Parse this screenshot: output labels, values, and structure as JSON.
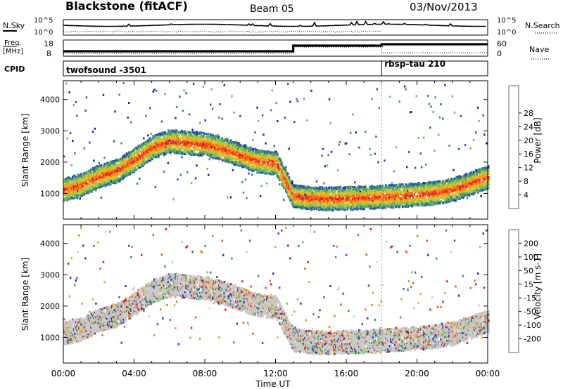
{
  "header": {
    "station": "Blackstone (fitACF)",
    "beam": "Beam 05",
    "date": "03/Nov/2013"
  },
  "noise_panel": {
    "left_label": "N.Sky",
    "right_label": "N.Search",
    "left_ticks": [
      "10^5",
      "10^0"
    ],
    "right_ticks": [
      "10^5",
      "10^0"
    ]
  },
  "freq_panel": {
    "left_label_lines": [
      "Freq.",
      "[MHz]"
    ],
    "right_label": "Nave",
    "left_ticks": [
      "18",
      "8"
    ],
    "right_ticks": [
      "60",
      "0"
    ]
  },
  "cpid_panel": {
    "label": "CPID",
    "programs": [
      {
        "name": "twofsound -3501",
        "start_hour": 0,
        "end_hour": 18
      },
      {
        "name": "rbsp-tau 210",
        "start_hour": 18,
        "end_hour": 24
      }
    ]
  },
  "x_axis": {
    "label": "Time UT",
    "ticks": [
      "00:00",
      "04:00",
      "08:00",
      "12:00",
      "16:00",
      "20:00",
      "00:00"
    ]
  },
  "chart_data": [
    {
      "type": "heatmap",
      "name": "power",
      "ylabel": "Slant Range [km]",
      "yticks": [
        "1000",
        "2000",
        "3000",
        "4000"
      ],
      "ylim": [
        180,
        4600
      ],
      "xlim": [
        0,
        24
      ],
      "colorbar_label": "Power [dB]",
      "colorbar_ticks": [
        "4",
        "8",
        "12",
        "16",
        "20",
        "24",
        "28"
      ],
      "colors": [
        "#0a1fd6",
        "#3050b0",
        "#3c8a6e",
        "#5fb86a",
        "#a8c83c",
        "#e8c020",
        "#f59a1c",
        "#f06a1a",
        "#e61e1e"
      ],
      "main_band_km": [
        [
          0,
          1150
        ],
        [
          1,
          1300
        ],
        [
          2,
          1580
        ],
        [
          3,
          1750
        ],
        [
          4,
          2100
        ],
        [
          5,
          2500
        ],
        [
          6,
          2700
        ],
        [
          7,
          2650
        ],
        [
          8,
          2600
        ],
        [
          9,
          2450
        ],
        [
          10,
          2250
        ],
        [
          11,
          2050
        ],
        [
          12,
          2000
        ],
        [
          13,
          950
        ],
        [
          14,
          880
        ],
        [
          15,
          860
        ],
        [
          16,
          880
        ],
        [
          17,
          900
        ],
        [
          18,
          920
        ],
        [
          19,
          960
        ],
        [
          20,
          1000
        ],
        [
          21,
          1050
        ],
        [
          22,
          1150
        ],
        [
          23,
          1350
        ],
        [
          24,
          1550
        ]
      ]
    },
    {
      "type": "heatmap",
      "name": "velocity",
      "ylabel": "Slant Range [km]",
      "yticks": [
        "1000",
        "2000",
        "3000",
        "4000"
      ],
      "ylim": [
        180,
        4600
      ],
      "xlim": [
        0,
        24
      ],
      "colorbar_label": "Velocity [m s-1]",
      "colorbar_ticks": [
        "200",
        "100",
        "50",
        "15",
        "-15",
        "-50",
        "-100",
        "-200"
      ],
      "colors": [
        "#1a2ed0",
        "#2f6a8a",
        "#2e9a4a",
        "#6ccc3a",
        "#c8c8c8",
        "#f0a030",
        "#f07020",
        "#f04a1a",
        "#e61414"
      ],
      "main_band_km": [
        [
          0,
          1150
        ],
        [
          1,
          1300
        ],
        [
          2,
          1580
        ],
        [
          3,
          1750
        ],
        [
          4,
          2100
        ],
        [
          5,
          2500
        ],
        [
          6,
          2700
        ],
        [
          7,
          2650
        ],
        [
          8,
          2600
        ],
        [
          9,
          2450
        ],
        [
          10,
          2250
        ],
        [
          11,
          2050
        ],
        [
          12,
          2000
        ],
        [
          13,
          950
        ],
        [
          14,
          880
        ],
        [
          15,
          860
        ],
        [
          16,
          880
        ],
        [
          17,
          900
        ],
        [
          18,
          920
        ],
        [
          19,
          960
        ],
        [
          20,
          1000
        ],
        [
          21,
          1050
        ],
        [
          22,
          1150
        ],
        [
          23,
          1350
        ],
        [
          24,
          1550
        ]
      ]
    }
  ]
}
